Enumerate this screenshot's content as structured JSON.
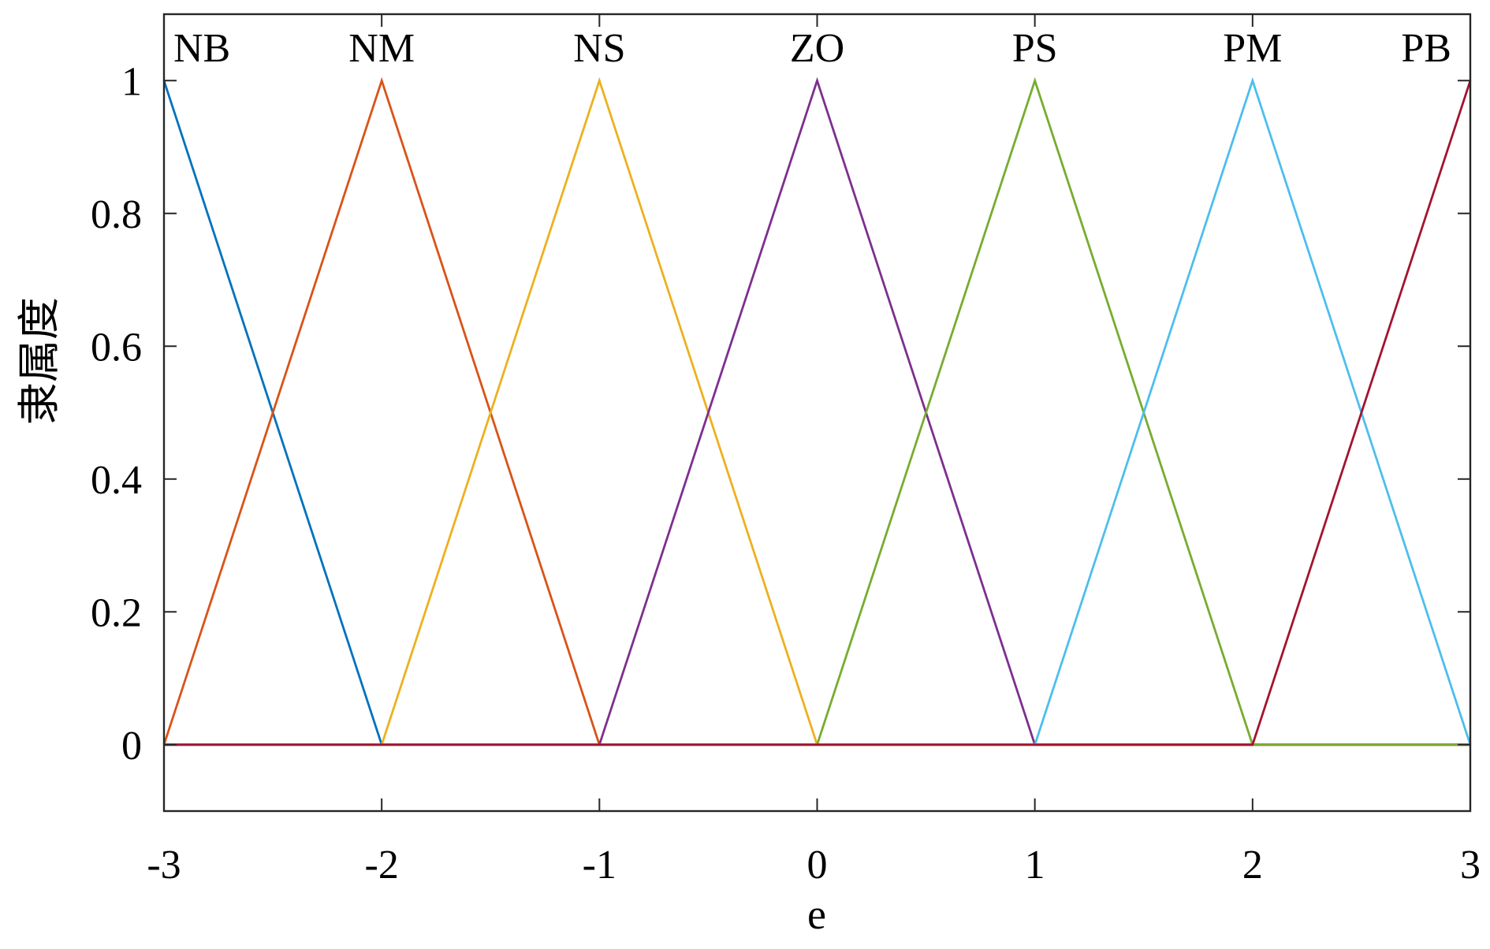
{
  "chart_data": {
    "type": "line",
    "xlabel": "e",
    "ylabel": "隶属度",
    "xlim": [
      -3,
      3
    ],
    "ylim": [
      -0.1,
      1.1
    ],
    "xticks": [
      "-3",
      "-2",
      "-1",
      "0",
      "1",
      "2",
      "3"
    ],
    "yticks": [
      "0",
      "0.2",
      "0.4",
      "0.6",
      "0.8",
      "1"
    ],
    "grid": false,
    "series": [
      {
        "name": "NB",
        "color": "#0072BD",
        "x": [
          -3,
          -2,
          3
        ],
        "y": [
          1,
          0,
          0
        ]
      },
      {
        "name": "NM",
        "color": "#D95319",
        "x": [
          -3,
          -2,
          -1,
          3
        ],
        "y": [
          0,
          1,
          0,
          0
        ]
      },
      {
        "name": "NS",
        "color": "#EDB120",
        "x": [
          -3,
          -2,
          -1,
          0,
          3
        ],
        "y": [
          0,
          0,
          1,
          0,
          0
        ]
      },
      {
        "name": "ZO",
        "color": "#7E2F8E",
        "x": [
          -3,
          -1,
          0,
          1,
          3
        ],
        "y": [
          0,
          0,
          1,
          0,
          0
        ]
      },
      {
        "name": "PS",
        "color": "#77AC30",
        "x": [
          -3,
          0,
          1,
          2,
          3
        ],
        "y": [
          0,
          0,
          1,
          0,
          0
        ]
      },
      {
        "name": "PM",
        "color": "#4DBEEE",
        "x": [
          -3,
          1,
          2,
          3
        ],
        "y": [
          0,
          0,
          1,
          0
        ]
      },
      {
        "name": "PB",
        "color": "#A2142F",
        "x": [
          -3,
          2,
          3
        ],
        "y": [
          0,
          0,
          1
        ]
      }
    ]
  }
}
